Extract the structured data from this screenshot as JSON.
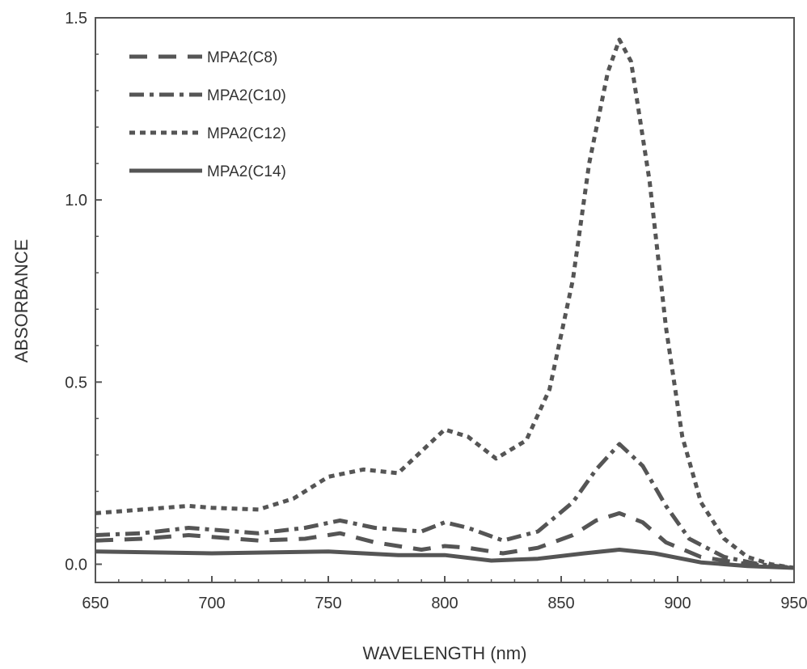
{
  "chart_data": {
    "type": "line",
    "title": "",
    "xlabel": "WAVELENGTH (nm)",
    "ylabel": "ABSORBANCE",
    "xlim": [
      650,
      950
    ],
    "ylim": [
      -0.05,
      1.5
    ],
    "xticks": [
      650,
      700,
      750,
      800,
      850,
      900,
      950
    ],
    "yticks": [
      0.0,
      0.5,
      1.0,
      1.5
    ],
    "xtick_labels": [
      "650",
      "700",
      "750",
      "800",
      "850",
      "900",
      "950"
    ],
    "ytick_labels": [
      "0.0",
      "0.5",
      "1.0",
      "1.5"
    ],
    "grid": false,
    "legend_position": "top-left",
    "series": [
      {
        "name": "MPA2(C8)",
        "style": "dashed",
        "color": "#555555",
        "x": [
          650,
          670,
          690,
          700,
          720,
          740,
          755,
          770,
          790,
          800,
          810,
          825,
          840,
          855,
          865,
          875,
          885,
          895,
          910,
          930,
          950
        ],
        "y": [
          0.065,
          0.07,
          0.08,
          0.075,
          0.065,
          0.07,
          0.085,
          0.06,
          0.04,
          0.05,
          0.045,
          0.03,
          0.045,
          0.08,
          0.12,
          0.14,
          0.115,
          0.06,
          0.02,
          0.0,
          -0.01
        ]
      },
      {
        "name": "MPA2(C10)",
        "style": "dash-dot",
        "color": "#555555",
        "x": [
          650,
          670,
          690,
          700,
          720,
          740,
          755,
          770,
          790,
          800,
          810,
          825,
          840,
          855,
          865,
          875,
          885,
          895,
          905,
          920,
          935,
          950
        ],
        "y": [
          0.08,
          0.085,
          0.1,
          0.095,
          0.085,
          0.1,
          0.12,
          0.1,
          0.09,
          0.115,
          0.1,
          0.065,
          0.09,
          0.17,
          0.26,
          0.33,
          0.27,
          0.16,
          0.07,
          0.02,
          0.0,
          -0.01
        ]
      },
      {
        "name": "MPA2(C12)",
        "style": "dotted",
        "color": "#555555",
        "x": [
          650,
          670,
          690,
          700,
          720,
          735,
          750,
          765,
          780,
          790,
          800,
          810,
          822,
          835,
          845,
          855,
          862,
          870,
          875,
          880,
          888,
          895,
          902,
          910,
          920,
          930,
          940,
          950
        ],
        "y": [
          0.14,
          0.15,
          0.16,
          0.155,
          0.15,
          0.18,
          0.24,
          0.26,
          0.25,
          0.31,
          0.37,
          0.35,
          0.29,
          0.34,
          0.48,
          0.78,
          1.1,
          1.35,
          1.44,
          1.38,
          1.05,
          0.65,
          0.35,
          0.17,
          0.07,
          0.02,
          0.0,
          -0.01
        ]
      },
      {
        "name": "MPA2(C14)",
        "style": "solid",
        "color": "#555555",
        "x": [
          650,
          700,
          750,
          780,
          800,
          820,
          840,
          860,
          875,
          890,
          910,
          930,
          950
        ],
        "y": [
          0.035,
          0.03,
          0.035,
          0.025,
          0.025,
          0.01,
          0.015,
          0.03,
          0.04,
          0.03,
          0.005,
          -0.005,
          -0.01
        ]
      }
    ]
  }
}
